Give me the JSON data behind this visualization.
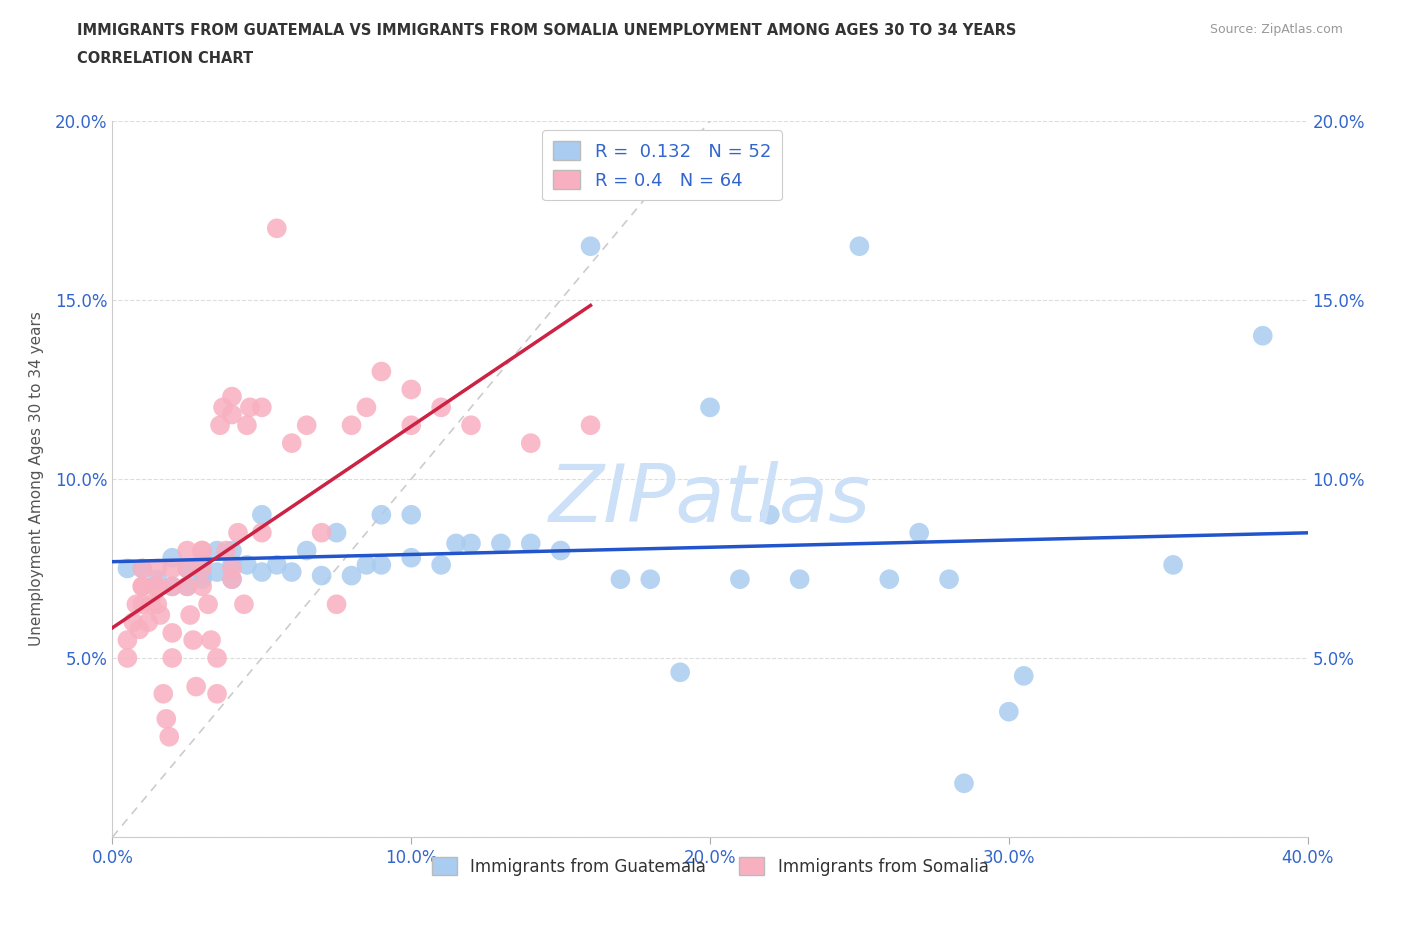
{
  "title_line1": "IMMIGRANTS FROM GUATEMALA VS IMMIGRANTS FROM SOMALIA UNEMPLOYMENT AMONG AGES 30 TO 34 YEARS",
  "title_line2": "CORRELATION CHART",
  "source_text": "Source: ZipAtlas.com",
  "ylabel": "Unemployment Among Ages 30 to 34 years",
  "xlim": [
    0,
    0.4
  ],
  "ylim": [
    0,
    0.2
  ],
  "xticks": [
    0.0,
    0.1,
    0.2,
    0.3,
    0.4
  ],
  "yticks": [
    0.0,
    0.05,
    0.1,
    0.15,
    0.2
  ],
  "xtick_labels": [
    "0.0%",
    "10.0%",
    "20.0%",
    "30.0%",
    "40.0%"
  ],
  "ytick_labels": [
    "",
    "5.0%",
    "10.0%",
    "15.0%",
    "20.0%"
  ],
  "guatemala_color": "#aaccf0",
  "somalia_color": "#f8b0c0",
  "trend_guatemala_color": "#2255cc",
  "trend_somalia_color": "#cc2244",
  "R_guatemala": 0.132,
  "N_guatemala": 52,
  "R_somalia": 0.4,
  "N_somalia": 64,
  "watermark": "ZIPatlas",
  "watermark_color": "#cce0f8",
  "legend_label_guatemala": "Immigrants from Guatemala",
  "legend_label_somalia": "Immigrants from Somalia",
  "guatemala_x": [
    0.005,
    0.01,
    0.015,
    0.02,
    0.02,
    0.025,
    0.025,
    0.03,
    0.03,
    0.03,
    0.035,
    0.035,
    0.04,
    0.04,
    0.04,
    0.045,
    0.05,
    0.05,
    0.055,
    0.06,
    0.065,
    0.07,
    0.075,
    0.08,
    0.085,
    0.09,
    0.09,
    0.1,
    0.1,
    0.11,
    0.115,
    0.12,
    0.13,
    0.14,
    0.15,
    0.16,
    0.17,
    0.18,
    0.19,
    0.2,
    0.21,
    0.22,
    0.23,
    0.25,
    0.26,
    0.27,
    0.28,
    0.285,
    0.3,
    0.305,
    0.355,
    0.385
  ],
  "guatemala_y": [
    0.075,
    0.075,
    0.072,
    0.07,
    0.078,
    0.07,
    0.075,
    0.073,
    0.077,
    0.072,
    0.074,
    0.08,
    0.076,
    0.072,
    0.08,
    0.076,
    0.074,
    0.09,
    0.076,
    0.074,
    0.08,
    0.073,
    0.085,
    0.073,
    0.076,
    0.076,
    0.09,
    0.078,
    0.09,
    0.076,
    0.082,
    0.082,
    0.082,
    0.082,
    0.08,
    0.165,
    0.072,
    0.072,
    0.046,
    0.12,
    0.072,
    0.09,
    0.072,
    0.165,
    0.072,
    0.085,
    0.072,
    0.015,
    0.035,
    0.045,
    0.076,
    0.14
  ],
  "somalia_x": [
    0.005,
    0.005,
    0.007,
    0.008,
    0.009,
    0.01,
    0.01,
    0.01,
    0.01,
    0.012,
    0.013,
    0.014,
    0.015,
    0.015,
    0.015,
    0.016,
    0.017,
    0.018,
    0.019,
    0.02,
    0.02,
    0.02,
    0.02,
    0.025,
    0.025,
    0.025,
    0.026,
    0.027,
    0.028,
    0.03,
    0.03,
    0.03,
    0.03,
    0.032,
    0.033,
    0.035,
    0.035,
    0.036,
    0.037,
    0.038,
    0.04,
    0.04,
    0.04,
    0.04,
    0.042,
    0.044,
    0.045,
    0.046,
    0.05,
    0.05,
    0.055,
    0.06,
    0.065,
    0.07,
    0.075,
    0.08,
    0.085,
    0.09,
    0.1,
    0.1,
    0.11,
    0.12,
    0.14,
    0.16
  ],
  "somalia_y": [
    0.05,
    0.055,
    0.06,
    0.065,
    0.058,
    0.065,
    0.07,
    0.07,
    0.075,
    0.06,
    0.065,
    0.07,
    0.07,
    0.065,
    0.075,
    0.062,
    0.04,
    0.033,
    0.028,
    0.07,
    0.075,
    0.05,
    0.057,
    0.07,
    0.075,
    0.08,
    0.062,
    0.055,
    0.042,
    0.07,
    0.075,
    0.08,
    0.08,
    0.065,
    0.055,
    0.05,
    0.04,
    0.115,
    0.12,
    0.08,
    0.072,
    0.075,
    0.118,
    0.123,
    0.085,
    0.065,
    0.115,
    0.12,
    0.12,
    0.085,
    0.17,
    0.11,
    0.115,
    0.085,
    0.065,
    0.115,
    0.12,
    0.13,
    0.115,
    0.125,
    0.12,
    0.115,
    0.11,
    0.115
  ]
}
